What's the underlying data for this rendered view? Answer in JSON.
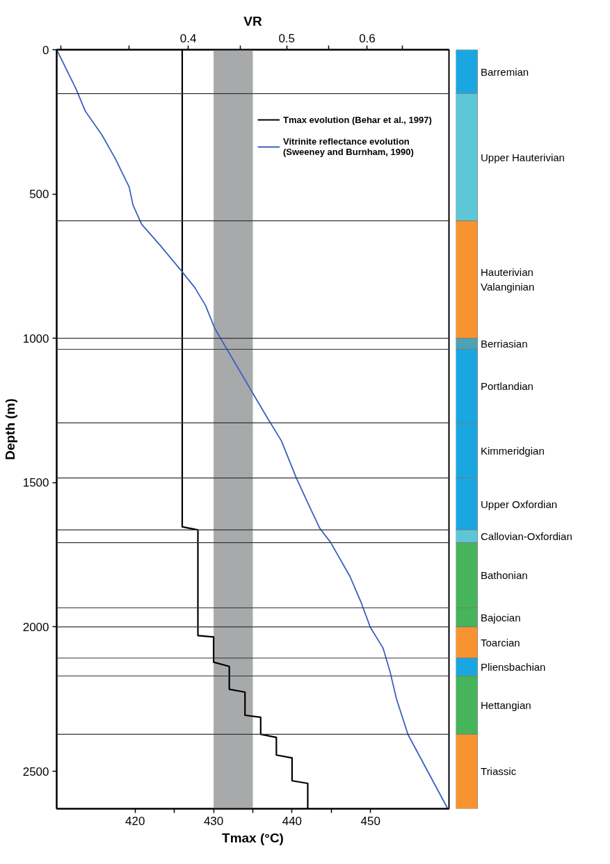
{
  "chart_data": [
    {
      "type": "line",
      "xlabel": "Tmax (°C)",
      "x2label": "VR",
      "ylabel": "Depth (m)",
      "xlim": [
        410,
        460
      ],
      "xticks": [
        420,
        {
          "value": 425,
          "label": null
        },
        430,
        {
          "value": 435,
          "label": null
        },
        440,
        {
          "value": 445,
          "label": null
        },
        450
      ],
      "x2lim": [
        0.297,
        0.722
      ],
      "x2ticks": [
        {
          "value": 0.3,
          "label": null
        },
        {
          "value": 0.35,
          "label": null
        },
        0.4,
        {
          "value": 0.45,
          "label": null
        },
        0.5,
        {
          "value": 0.55,
          "label": null
        },
        0.6,
        {
          "value": 0.65,
          "label": null
        }
      ],
      "log": "x2",
      "ylim": [
        2630,
        0
      ],
      "yticks": [
        0,
        500,
        1000,
        1500,
        2000,
        2500
      ],
      "legend": "top right",
      "line_style": "solid",
      "series": [
        {
          "name": "Tmax evolution (Behar et al., 1997)",
          "color": "#000000",
          "x": [
            426,
            426,
            428,
            428,
            430,
            430,
            432,
            432,
            434,
            434,
            436,
            436,
            438,
            438,
            440,
            440,
            442,
            442
          ],
          "values": [
            0,
            1653,
            1664,
            2030,
            2035,
            2122,
            2137,
            2216,
            2226,
            2306,
            2313,
            2372,
            2383,
            2444,
            2454,
            2533,
            2542,
            2630
          ]
        },
        {
          "name": "Vitrinite reflectance evolution\n(Sweeney and Burnham, 1990)",
          "color": "#3a5fc0",
          "axis": "x2",
          "x": [
            0.297,
            0.31,
            0.317,
            0.329,
            0.339,
            0.35,
            0.353,
            0.36,
            0.375,
            0.393,
            0.406,
            0.416,
            0.425,
            0.478,
            0.494,
            0.511,
            0.527,
            0.539,
            0.552,
            0.577,
            0.592,
            0.604,
            0.622,
            0.632,
            0.641,
            0.658,
            0.72
          ],
          "values": [
            0,
            133,
            214,
            295,
            376,
            476,
            538,
            605,
            676,
            762,
            824,
            886,
            967,
            1273,
            1355,
            1484,
            1586,
            1659,
            1706,
            1825,
            1917,
            2000,
            2074,
            2157,
            2249,
            2373,
            2630
          ]
        }
      ],
      "bands": [
        {
          "axis": "x",
          "from": 430,
          "to": 435,
          "color": "#a7a9ab"
        }
      ],
      "ref_lines": [
        {
          "axis": "y",
          "value": 152,
          "color": "#333333"
        },
        {
          "axis": "y",
          "value": 593,
          "color": "#333333"
        },
        {
          "axis": "y",
          "value": 1000,
          "color": "#333333"
        },
        {
          "axis": "y",
          "value": 1038,
          "color": "#333333"
        },
        {
          "axis": "y",
          "value": 1293,
          "color": "#333333"
        },
        {
          "axis": "y",
          "value": 1484,
          "color": "#333333"
        },
        {
          "axis": "y",
          "value": 1664,
          "color": "#333333"
        },
        {
          "axis": "y",
          "value": 1708,
          "color": "#333333"
        },
        {
          "axis": "y",
          "value": 1934,
          "color": "#333333"
        },
        {
          "axis": "y",
          "value": 2000,
          "color": "#333333"
        },
        {
          "axis": "y",
          "value": 2108,
          "color": "#333333"
        },
        {
          "axis": "y",
          "value": 2170,
          "color": "#333333"
        },
        {
          "axis": "y",
          "value": 2372,
          "color": "#333333"
        }
      ]
    },
    {
      "type": "bar",
      "stacked": true,
      "categories": [
        null
      ],
      "ylim": [
        2630,
        0
      ],
      "tick_labels": false,
      "series": [
        {
          "name": "Barremian",
          "color": "#1aa7e1",
          "values": [
            152
          ]
        },
        {
          "name": "Upper Hauterivian",
          "color": "#5ec7d7",
          "values": [
            441
          ]
        },
        {
          "name": "Hauterivian\nValanginian",
          "color": "#f7942f",
          "values": [
            407
          ]
        },
        {
          "name": "Berriasian",
          "color": "#4ba3b4",
          "values": [
            38
          ]
        },
        {
          "name": "Portlandian",
          "color": "#1aa7e1",
          "values": [
            255
          ]
        },
        {
          "name": "Kimmeridgian",
          "color": "#1aa7e1",
          "values": [
            191
          ]
        },
        {
          "name": "Upper Oxfordian",
          "color": "#1aa7e1",
          "values": [
            180
          ]
        },
        {
          "name": "Callovian-Oxfordian",
          "color": "#5ec7d7",
          "values": [
            44
          ]
        },
        {
          "name": "Bathonian",
          "color": "#45b45a",
          "values": [
            226
          ]
        },
        {
          "name": "Bajocian",
          "color": "#45b45a",
          "values": [
            66
          ]
        },
        {
          "name": "Toarcian",
          "color": "#f7942f",
          "values": [
            108
          ]
        },
        {
          "name": "Pliensbachian",
          "color": "#1aa7e1",
          "values": [
            62
          ]
        },
        {
          "name": "Hettangian",
          "color": "#45b45a",
          "values": [
            202
          ]
        },
        {
          "name": "Triassic",
          "color": "#f7942f",
          "values": [
            258
          ]
        }
      ]
    }
  ]
}
